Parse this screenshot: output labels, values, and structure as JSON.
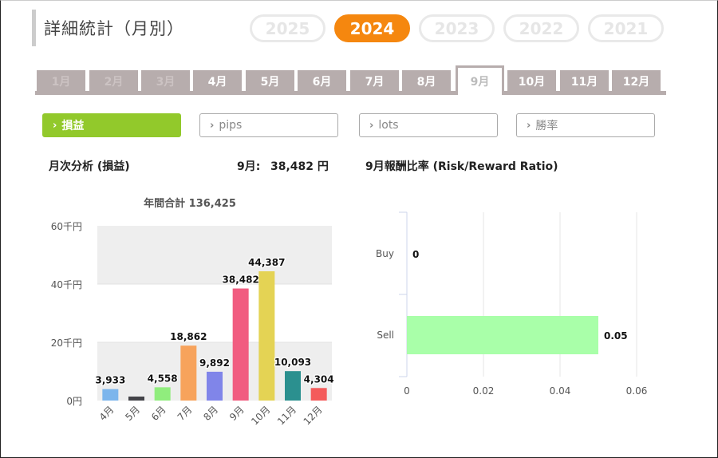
{
  "page": {
    "title": "詳細統計（月別）"
  },
  "years": [
    {
      "label": "2025",
      "active": false
    },
    {
      "label": "2024",
      "active": true
    },
    {
      "label": "2023",
      "active": false
    },
    {
      "label": "2022",
      "active": false
    },
    {
      "label": "2021",
      "active": false
    }
  ],
  "months": [
    {
      "label": "1月",
      "state": "dim"
    },
    {
      "label": "2月",
      "state": "dim"
    },
    {
      "label": "3月",
      "state": "dim"
    },
    {
      "label": "4月",
      "state": "normal"
    },
    {
      "label": "5月",
      "state": "normal"
    },
    {
      "label": "6月",
      "state": "normal"
    },
    {
      "label": "7月",
      "state": "normal"
    },
    {
      "label": "8月",
      "state": "normal"
    },
    {
      "label": "9月",
      "state": "active"
    },
    {
      "label": "10月",
      "state": "normal"
    },
    {
      "label": "11月",
      "state": "normal"
    },
    {
      "label": "12月",
      "state": "normal"
    }
  ],
  "filters": [
    {
      "label": "損益",
      "active": true
    },
    {
      "label": "pips",
      "active": false
    },
    {
      "label": "lots",
      "active": false
    },
    {
      "label": "勝率",
      "active": false
    }
  ],
  "monthly": {
    "section_title": "月次分析 (損益)",
    "value_label": "9月:",
    "value": "38,482 円"
  },
  "ratio_title": "9月報酬比率 (Risk/Reward Ratio)",
  "chart_data": [
    {
      "type": "bar",
      "title": "年間合計 136,425",
      "categories": [
        "4月",
        "5月",
        "6月",
        "7月",
        "8月",
        "9月",
        "10月",
        "11月",
        "12月"
      ],
      "values": [
        3933,
        1,
        4558,
        18862,
        9892,
        38482,
        44387,
        10093,
        4304
      ],
      "data_labels": [
        "3,933",
        "",
        "4,558",
        "18,862",
        "9,892",
        "38,482",
        "44,387",
        "10,093",
        "4,304"
      ],
      "colors": [
        "#7cb5ec",
        "#434348",
        "#90ed7d",
        "#f7a35c",
        "#8085e9",
        "#f15c80",
        "#e4d354",
        "#2b908f",
        "#f45b5b"
      ],
      "yticks": [
        "0円",
        "20千円",
        "40千円",
        "60千円"
      ],
      "ytick_values": [
        0,
        20000,
        40000,
        60000
      ],
      "ylim": [
        0,
        60000
      ],
      "alternating_bands": true
    },
    {
      "type": "bar",
      "orientation": "horizontal",
      "categories": [
        "Buy",
        "Sell"
      ],
      "values": [
        0,
        0.05
      ],
      "data_labels": [
        "0",
        "0.05"
      ],
      "color": "#a9ffa9",
      "xticks": [
        "0",
        "0.02",
        "0.04",
        "0.06"
      ],
      "xtick_values": [
        0,
        0.02,
        0.04,
        0.06
      ],
      "xlim": [
        0,
        0.06
      ],
      "grid": true
    }
  ]
}
